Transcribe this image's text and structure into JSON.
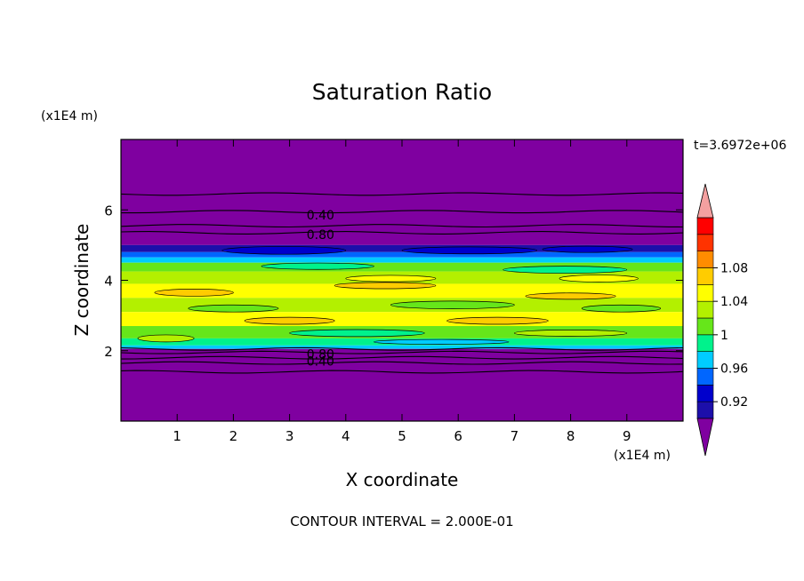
{
  "chart_data": {
    "type": "heatmap",
    "title": "Saturation Ratio",
    "xlabel": "X coordinate",
    "ylabel": "Z coordinate",
    "x_unit": "(x1E4 m)",
    "y_unit": "(x1E4 m)",
    "xlim": [
      0,
      10
    ],
    "ylim": [
      0,
      8
    ],
    "x_ticks": [
      "1",
      "2",
      "3",
      "4",
      "5",
      "6",
      "7",
      "8",
      "9"
    ],
    "y_ticks": [
      "2",
      "4",
      "6"
    ],
    "time_label": "t=3.6972e+06",
    "footer": "CONTOUR INTERVAL = 2.000E-01",
    "contour_labels": [
      {
        "text": "0.40",
        "x": 3.55,
        "z": 5.85
      },
      {
        "text": "0.80",
        "x": 3.55,
        "z": 5.3
      },
      {
        "text": "0.80",
        "x": 3.55,
        "z": 1.9
      },
      {
        "text": "0.40",
        "x": 3.55,
        "z": 1.7
      }
    ],
    "contour_levels_z": [
      6.45,
      5.95,
      5.55,
      5.35,
      2.05,
      1.95,
      1.8,
      1.65,
      1.4
    ],
    "colorbar": {
      "labels": [
        "0.92",
        "0.96",
        "1",
        "1.04",
        "1.08"
      ],
      "bins": [
        {
          "color": "#7f00a0"
        },
        {
          "color": "#1c0faa"
        },
        {
          "color": "#0000cc"
        },
        {
          "color": "#0066ff"
        },
        {
          "color": "#00ccff"
        },
        {
          "color": "#00f28c"
        },
        {
          "color": "#66e61a"
        },
        {
          "color": "#b3f000"
        },
        {
          "color": "#ffff00"
        },
        {
          "color": "#ffcc00"
        },
        {
          "color": "#ff8c00"
        },
        {
          "color": "#ff3300"
        },
        {
          "color": "#ff0000"
        },
        {
          "color": "#f4a0a0"
        }
      ],
      "low_color": "#7f00a0",
      "high_color": "#f4a0a0"
    },
    "field_bands": [
      {
        "z0": 5.0,
        "z1": 8.0,
        "color": "#7f00a0"
      },
      {
        "z0": 4.8,
        "z1": 5.0,
        "color": "#1c0faa"
      },
      {
        "z0": 4.65,
        "z1": 4.8,
        "color": "#0066ff"
      },
      {
        "z0": 4.5,
        "z1": 4.65,
        "color": "#00ccff"
      },
      {
        "z0": 4.25,
        "z1": 4.5,
        "color": "#66e61a"
      },
      {
        "z0": 3.9,
        "z1": 4.25,
        "color": "#b3f000"
      },
      {
        "z0": 3.5,
        "z1": 3.9,
        "color": "#ffff00"
      },
      {
        "z0": 3.1,
        "z1": 3.5,
        "color": "#b3f000"
      },
      {
        "z0": 2.7,
        "z1": 3.1,
        "color": "#ffff00"
      },
      {
        "z0": 2.35,
        "z1": 2.7,
        "color": "#66e61a"
      },
      {
        "z0": 2.15,
        "z1": 2.35,
        "color": "#00f28c"
      },
      {
        "z0": 2.05,
        "z1": 2.15,
        "color": "#00ccff"
      },
      {
        "z0": 0.0,
        "z1": 2.05,
        "color": "#7f00a0"
      }
    ],
    "field_patches": [
      {
        "x": 1.8,
        "z": 4.85,
        "w": 2.2,
        "h": 0.22,
        "color": "#0000cc"
      },
      {
        "x": 5.0,
        "z": 4.85,
        "w": 2.4,
        "h": 0.2,
        "color": "#0000cc"
      },
      {
        "x": 7.5,
        "z": 4.88,
        "w": 1.6,
        "h": 0.18,
        "color": "#0000cc"
      },
      {
        "x": 2.5,
        "z": 4.4,
        "w": 2.0,
        "h": 0.18,
        "color": "#00f28c"
      },
      {
        "x": 6.8,
        "z": 4.3,
        "w": 2.2,
        "h": 0.2,
        "color": "#00f28c"
      },
      {
        "x": 4.0,
        "z": 4.05,
        "w": 1.6,
        "h": 0.18,
        "color": "#ffff00"
      },
      {
        "x": 7.8,
        "z": 4.05,
        "w": 1.4,
        "h": 0.2,
        "color": "#ffff00"
      },
      {
        "x": 0.6,
        "z": 3.65,
        "w": 1.4,
        "h": 0.2,
        "color": "#ffcc00"
      },
      {
        "x": 3.8,
        "z": 3.85,
        "w": 1.8,
        "h": 0.18,
        "color": "#ffcc00"
      },
      {
        "x": 7.2,
        "z": 3.55,
        "w": 1.6,
        "h": 0.18,
        "color": "#ffcc00"
      },
      {
        "x": 4.8,
        "z": 3.3,
        "w": 2.2,
        "h": 0.22,
        "color": "#66e61a"
      },
      {
        "x": 1.2,
        "z": 3.2,
        "w": 1.6,
        "h": 0.2,
        "color": "#66e61a"
      },
      {
        "x": 8.2,
        "z": 3.2,
        "w": 1.4,
        "h": 0.2,
        "color": "#66e61a"
      },
      {
        "x": 2.2,
        "z": 2.85,
        "w": 1.6,
        "h": 0.2,
        "color": "#ffcc00"
      },
      {
        "x": 5.8,
        "z": 2.85,
        "w": 1.8,
        "h": 0.2,
        "color": "#ffcc00"
      },
      {
        "x": 3.0,
        "z": 2.5,
        "w": 2.4,
        "h": 0.2,
        "color": "#00f28c"
      },
      {
        "x": 7.0,
        "z": 2.5,
        "w": 2.0,
        "h": 0.18,
        "color": "#b3f000"
      },
      {
        "x": 0.3,
        "z": 2.35,
        "w": 1.0,
        "h": 0.2,
        "color": "#b3f000"
      },
      {
        "x": 4.5,
        "z": 2.25,
        "w": 2.4,
        "h": 0.14,
        "color": "#00ccff"
      }
    ]
  }
}
